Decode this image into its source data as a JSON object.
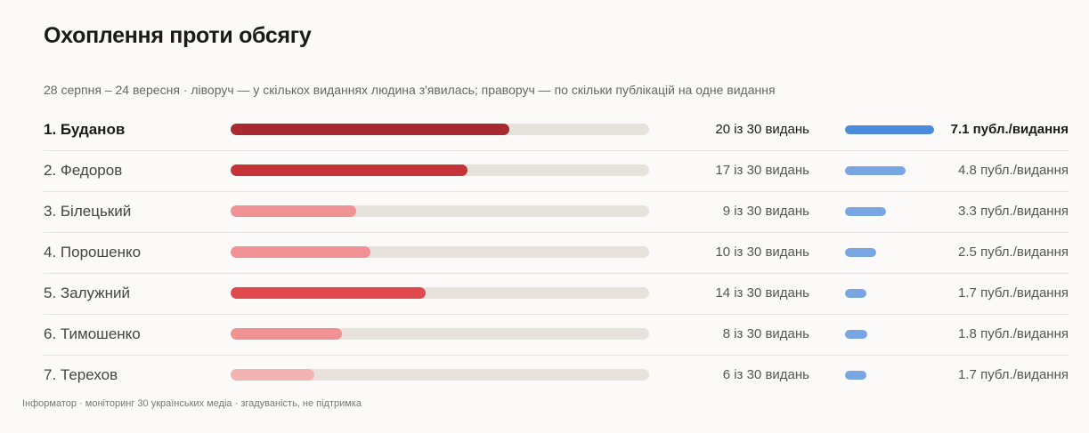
{
  "title": "Охоплення проти обсягу",
  "subtitle": "28 серпня – 24 вересня · ліворуч — у скількох виданнях людина з'явилась; праворуч — по скільки публікацій на одне видання",
  "footer": "Інформатор · моніторинг 30 українських медіа · згадуваність, не підтримка",
  "chart_data": {
    "type": "bar",
    "total_outlets": 30,
    "categories": [
      "1. Буданов",
      "2. Федоров",
      "3. Білецький",
      "4. Порошенко",
      "5. Залужний",
      "6. Тимошенко",
      "7. Терехов"
    ],
    "series": [
      {
        "values": [
          20,
          17,
          9,
          10,
          14,
          8,
          6
        ],
        "labels": [
          "20 із 30 видань",
          "17 із 30 видань",
          "9 із 30 видань",
          "10 із 30 видань",
          "14 із 30 видань",
          "8 із 30 видань",
          "6 із 30 видань"
        ],
        "colors": [
          "#a8292f",
          "#c33338",
          "#f09293",
          "#f09293",
          "#e04a4e",
          "#f09293",
          "#f3b3b3"
        ]
      },
      {
        "values": [
          7.1,
          4.8,
          3.3,
          2.5,
          1.7,
          1.8,
          1.7
        ],
        "labels": [
          "7.1 публ./видання",
          "4.8 публ./видання",
          "3.3 публ./видання",
          "2.5 публ./видання",
          "1.7 публ./видання",
          "1.8 публ./видання",
          "1.7 публ./видання"
        ],
        "colors": [
          "#4a8cdb",
          "#79a6e2",
          "#79a6e2",
          "#79a6e2",
          "#79a6e2",
          "#79a6e2",
          "#79a6e2"
        ]
      }
    ],
    "highlight_index": 0
  }
}
